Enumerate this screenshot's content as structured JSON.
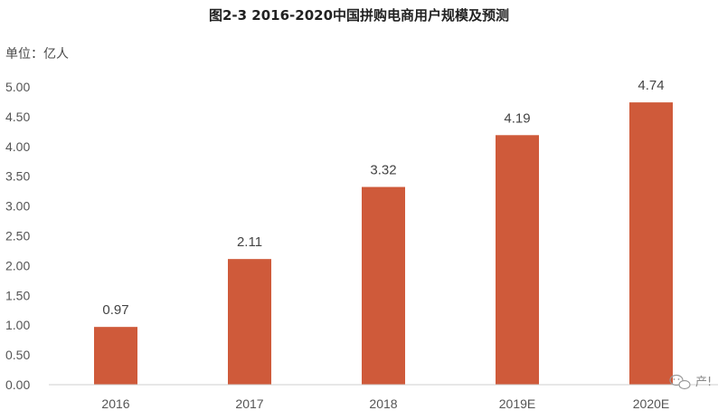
{
  "chart_data": {
    "type": "bar",
    "title": "图2-3 2016-2020中国拼购电商用户规模及预测",
    "unit_label": "单位：亿人",
    "categories": [
      "2016",
      "2017",
      "2018",
      "2019E",
      "2020E"
    ],
    "values": [
      0.97,
      2.11,
      3.32,
      4.19,
      4.74
    ],
    "data_labels": [
      "0.97",
      "2.11",
      "3.32",
      "4.19",
      "4.74"
    ],
    "ylim": [
      0,
      5
    ],
    "yticks": [
      "0.00",
      "0.50",
      "1.00",
      "1.50",
      "2.00",
      "2.50",
      "3.00",
      "3.50",
      "4.00",
      "4.50",
      "5.00"
    ],
    "grid": false,
    "legend": "none",
    "bar_color": "#cf5a3a"
  },
  "watermark": {
    "icon": "wechat-icon",
    "text": "产!"
  }
}
